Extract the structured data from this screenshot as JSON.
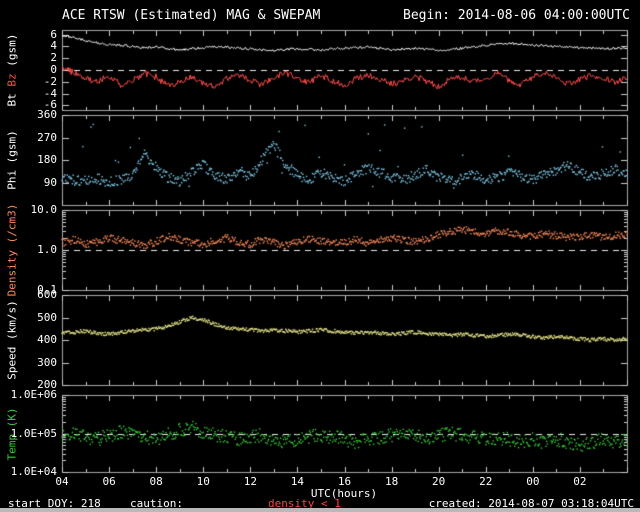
{
  "header": {
    "title": "ACE RTSW (Estimated) MAG & SWEPAM",
    "begin": "Begin: 2014-08-06 04:00:00UTC"
  },
  "footer": {
    "start_doy": "start DOY: 218",
    "caution_label": "caution:",
    "caution_value": "density < 1",
    "created": "created: 2014-08-07 03:18:04UTC"
  },
  "y_axis_labels": {
    "bt": "Bt",
    "bz": "Bz",
    "mag_unit": "(gsm)",
    "phi": "Phi (gsm)",
    "density": "Density (/cm3)",
    "speed": "Speed (km/s)",
    "temp": "Temp (K)"
  },
  "colors": {
    "background": "#000000",
    "frame": "#a8a8a8",
    "tick": "#cfcfcf",
    "dashed": "#ededed",
    "text": "#ffffff",
    "caution": "#ff4040"
  },
  "x_axis": {
    "label": "UTC(hours)",
    "t_min": 4,
    "t_max": 28,
    "major_step": 2,
    "minor_step": 1,
    "tick_labels": [
      "04",
      "06",
      "08",
      "10",
      "12",
      "14",
      "16",
      "18",
      "20",
      "22",
      "00",
      "02"
    ]
  },
  "chart_data": [
    {
      "id": "mag",
      "type": "line",
      "ylabel": "Bt Bz (gsm)",
      "scale": "linear",
      "yrange": [
        -6.8,
        6.8
      ],
      "yticks": [
        {
          "v": 6,
          "label": "6"
        },
        {
          "v": 4,
          "label": "4"
        },
        {
          "v": 2,
          "label": "2"
        },
        {
          "v": 0,
          "label": "0"
        },
        {
          "v": -2,
          "label": "-2"
        },
        {
          "v": -4,
          "label": "-4"
        },
        {
          "v": -6,
          "label": "-6"
        }
      ],
      "dashed_at": 0,
      "t_start": 4,
      "t_step": 0.5,
      "series": [
        {
          "name": "Bt",
          "color": "#ffffff",
          "style": "line",
          "jitter": 0.2,
          "values": [
            5.9,
            5.5,
            5.0,
            4.6,
            4.3,
            4.2,
            4.0,
            3.8,
            3.9,
            3.7,
            3.4,
            3.6,
            3.8,
            4.0,
            3.9,
            3.7,
            3.6,
            3.4,
            3.3,
            3.5,
            3.6,
            3.5,
            3.4,
            3.6,
            3.7,
            3.8,
            3.9,
            3.7,
            3.5,
            3.6,
            3.7,
            3.5,
            3.4,
            3.5,
            3.7,
            3.9,
            4.2,
            4.4,
            4.5,
            4.4,
            4.2,
            4.1,
            4.0,
            3.9,
            3.8,
            3.7,
            3.6,
            3.7,
            3.8
          ]
        },
        {
          "name": "Bz",
          "color": "#ff4d4d",
          "style": "line",
          "jitter": 0.55,
          "values": [
            0.5,
            -0.5,
            -1.5,
            -2.0,
            -1.0,
            -2.5,
            -1.8,
            -0.5,
            -1.2,
            -2.8,
            -2.0,
            -1.0,
            -2.2,
            -3.0,
            -1.5,
            -0.8,
            -1.8,
            -2.5,
            -1.2,
            -0.5,
            -1.5,
            -2.2,
            -1.0,
            -1.8,
            -2.6,
            -1.4,
            -0.8,
            -1.6,
            -2.4,
            -1.8,
            -1.0,
            -2.0,
            -2.8,
            -1.6,
            -1.2,
            -2.0,
            -1.4,
            -0.6,
            -1.8,
            -2.6,
            -1.2,
            -0.4,
            -1.5,
            -2.3,
            -1.7,
            -0.9,
            -1.4,
            -2.1,
            -1.3
          ]
        }
      ]
    },
    {
      "id": "phi",
      "type": "scatter",
      "ylabel": "Phi (gsm)",
      "scale": "linear",
      "yrange": [
        0,
        360
      ],
      "yticks": [
        {
          "v": 360,
          "label": "360"
        },
        {
          "v": 270,
          "label": "270"
        },
        {
          "v": 180,
          "label": "180"
        },
        {
          "v": 90,
          "label": "90"
        }
      ],
      "dashed_at": null,
      "t_start": 4,
      "t_step": 0.5,
      "series": [
        {
          "name": "Phi",
          "color": "#7fc9e8",
          "style": "dots",
          "jitter": 20,
          "outlier_rate": 0.03,
          "outlier_range": [
            60,
            360
          ],
          "values": [
            110,
            100,
            95,
            105,
            90,
            100,
            120,
            200,
            150,
            110,
            95,
            130,
            160,
            120,
            100,
            140,
            110,
            180,
            250,
            150,
            120,
            100,
            130,
            110,
            95,
            120,
            150,
            130,
            110,
            100,
            120,
            140,
            110,
            95,
            105,
            120,
            100,
            110,
            130,
            115,
            100,
            120,
            140,
            160,
            130,
            110,
            125,
            145,
            120
          ]
        }
      ]
    },
    {
      "id": "density",
      "type": "scatter",
      "ylabel": "Density (/cm3)",
      "scale": "log",
      "yrange": [
        0.1,
        10
      ],
      "yticks": [
        {
          "v": 10,
          "label": "10.0"
        },
        {
          "v": 1,
          "label": "1.0"
        },
        {
          "v": 0.1,
          "label": "0.1"
        }
      ],
      "dashed_at": 1.0,
      "t_start": 4,
      "t_step": 0.5,
      "series": [
        {
          "name": "Density",
          "color": "#fa8a5a",
          "style": "dots",
          "jitter": 0.09,
          "values": [
            1.5,
            1.8,
            1.4,
            1.6,
            2.0,
            1.7,
            1.5,
            1.3,
            1.6,
            2.2,
            1.8,
            1.5,
            1.4,
            1.7,
            2.0,
            1.6,
            1.4,
            1.8,
            1.5,
            1.3,
            1.6,
            1.9,
            1.7,
            1.4,
            1.6,
            1.8,
            1.5,
            1.7,
            2.0,
            1.8,
            1.6,
            1.9,
            2.4,
            2.8,
            3.2,
            2.9,
            2.6,
            3.0,
            2.7,
            2.4,
            2.2,
            2.5,
            2.3,
            2.0,
            2.2,
            2.4,
            2.1,
            2.3,
            2.5
          ]
        }
      ]
    },
    {
      "id": "speed",
      "type": "scatter",
      "ylabel": "Speed (km/s)",
      "scale": "linear",
      "yrange": [
        200,
        600
      ],
      "yticks": [
        {
          "v": 600,
          "label": "600"
        },
        {
          "v": 500,
          "label": "500"
        },
        {
          "v": 400,
          "label": "400"
        },
        {
          "v": 300,
          "label": "300"
        },
        {
          "v": 200,
          "label": "200"
        }
      ],
      "dashed_at": null,
      "t_start": 4,
      "t_step": 0.5,
      "series": [
        {
          "name": "Speed",
          "color": "#e6e68a",
          "style": "dots",
          "jitter": 8,
          "values": [
            430,
            435,
            440,
            430,
            425,
            435,
            440,
            445,
            450,
            460,
            480,
            500,
            490,
            470,
            455,
            450,
            445,
            440,
            445,
            440,
            435,
            440,
            445,
            440,
            435,
            430,
            435,
            430,
            425,
            430,
            435,
            430,
            425,
            420,
            425,
            420,
            415,
            420,
            425,
            420,
            415,
            410,
            415,
            410,
            405,
            400,
            405,
            400,
            405
          ]
        }
      ]
    },
    {
      "id": "temp",
      "type": "scatter",
      "ylabel": "Temp (K)",
      "scale": "log",
      "yrange": [
        10000,
        1000000
      ],
      "yticks": [
        {
          "v": 1000000,
          "label": "1.0E+06"
        },
        {
          "v": 100000,
          "label": "1.0E+05"
        },
        {
          "v": 10000,
          "label": "1.0E+04"
        }
      ],
      "dashed_at": 100000,
      "t_start": 4,
      "t_step": 0.5,
      "series": [
        {
          "name": "Temp",
          "color": "#37c837",
          "style": "dots",
          "jitter": 0.18,
          "values": [
            90000,
            100000,
            80000,
            70000,
            90000,
            110000,
            100000,
            80000,
            70000,
            90000,
            120000,
            140000,
            110000,
            90000,
            80000,
            70000,
            80000,
            90000,
            70000,
            60000,
            70000,
            80000,
            90000,
            80000,
            70000,
            60000,
            70000,
            80000,
            90000,
            100000,
            90000,
            80000,
            90000,
            100000,
            90000,
            80000,
            70000,
            80000,
            70000,
            60000,
            70000,
            60000,
            70000,
            60000,
            50000,
            60000,
            70000,
            60000,
            65000
          ]
        }
      ]
    }
  ]
}
